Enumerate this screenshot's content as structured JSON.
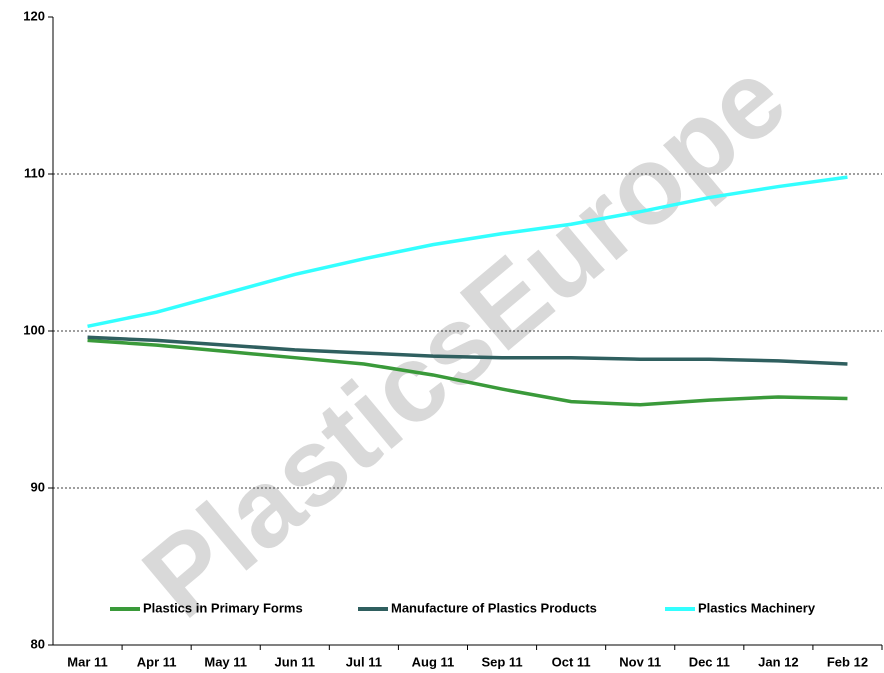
{
  "chart_data": {
    "type": "line",
    "watermark": "PlasticsEurope",
    "categories": [
      "Mar 11",
      "Apr 11",
      "May 11",
      "Jun 11",
      "Jul 11",
      "Aug 11",
      "Sep 11",
      "Oct 11",
      "Nov 11",
      "Dec 11",
      "Jan 12",
      "Feb 12"
    ],
    "series": [
      {
        "name": "Plastics in Primary Forms",
        "color": "#3a9a3a",
        "values": [
          99.4,
          99.1,
          98.7,
          98.3,
          97.9,
          97.2,
          96.3,
          95.5,
          95.3,
          95.6,
          95.8,
          95.7
        ]
      },
      {
        "name": "Manufacture of Plastics Products",
        "color": "#2f5f5f",
        "values": [
          99.6,
          99.4,
          99.1,
          98.8,
          98.6,
          98.4,
          98.3,
          98.3,
          98.2,
          98.2,
          98.1,
          97.9
        ]
      },
      {
        "name": "Plastics Machinery",
        "color": "#33ffff",
        "values": [
          100.3,
          101.2,
          102.4,
          103.6,
          104.6,
          105.5,
          106.2,
          106.8,
          107.6,
          108.5,
          109.2,
          109.8
        ]
      }
    ],
    "ylim": [
      80,
      120
    ],
    "yticks": [
      80,
      90,
      100,
      110,
      120
    ],
    "grid": true,
    "legend": "bottom"
  }
}
